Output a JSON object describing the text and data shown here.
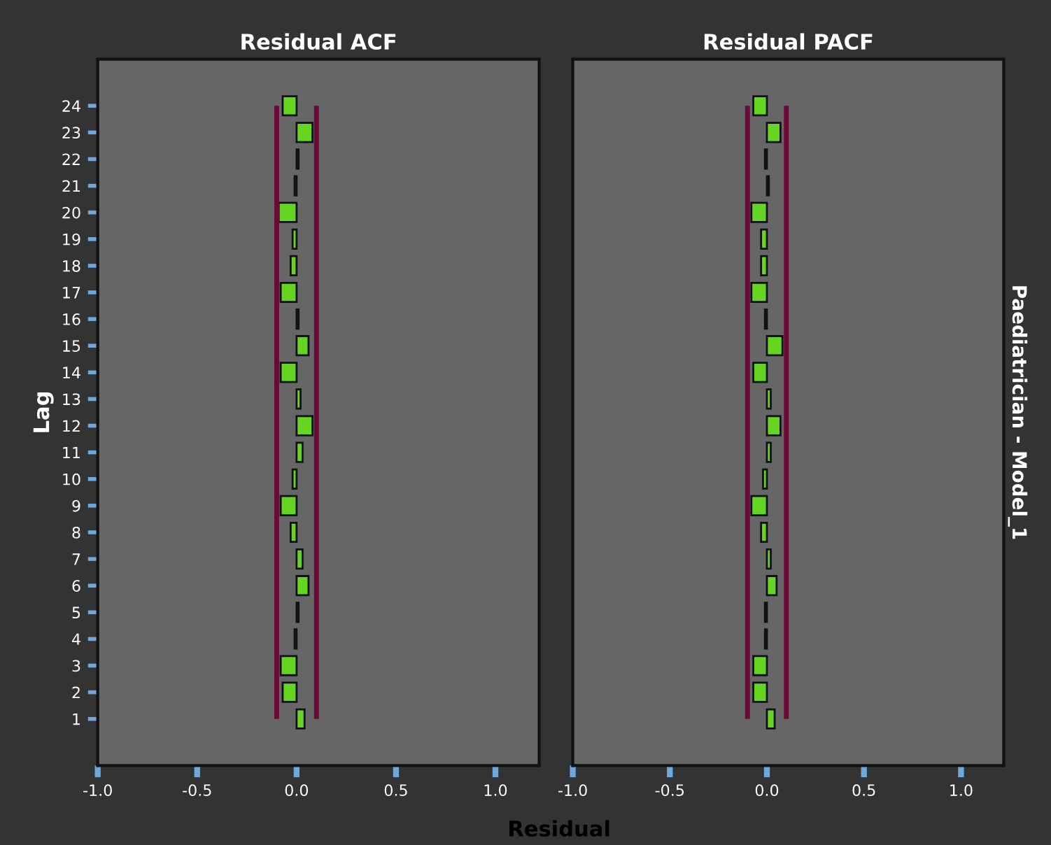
{
  "chart_data": [
    {
      "type": "bar",
      "orientation": "horizontal",
      "title": "Residual ACF",
      "xlabel": "Residual",
      "ylabel": "Lag",
      "categories": [
        "24",
        "23",
        "22",
        "21",
        "20",
        "19",
        "18",
        "17",
        "16",
        "15",
        "14",
        "13",
        "12",
        "11",
        "10",
        "9",
        "8",
        "7",
        "6",
        "5",
        "4",
        "3",
        "2",
        "1"
      ],
      "values": [
        -0.07,
        0.08,
        0.01,
        -0.01,
        -0.09,
        -0.02,
        -0.03,
        -0.08,
        0.01,
        0.06,
        -0.08,
        0.02,
        0.08,
        0.03,
        -0.02,
        -0.08,
        -0.03,
        0.03,
        0.06,
        0.01,
        -0.01,
        -0.08,
        -0.07,
        0.04
      ],
      "color": "#66d522",
      "xlim": [
        -1.0,
        1.22
      ],
      "xticks": [
        {
          "value": -1.0,
          "label": "-1.0"
        },
        {
          "value": -0.5,
          "label": "-0.5"
        },
        {
          "value": 0.0,
          "label": "0.0"
        },
        {
          "value": 0.5,
          "label": "0.5"
        },
        {
          "value": 1.0,
          "label": "1.0"
        }
      ],
      "ref_lines": [
        {
          "axis": "x",
          "value": -0.1,
          "label": null,
          "color": "#6b0a3a"
        },
        {
          "axis": "x",
          "value": 0.1,
          "label": null,
          "color": "#6b0a3a"
        }
      ],
      "grid": false,
      "legend": false
    },
    {
      "type": "bar",
      "orientation": "horizontal",
      "title": "Residual PACF",
      "annotations": [
        "Paediatrician - Model_1"
      ],
      "categories": [
        "24",
        "23",
        "22",
        "21",
        "20",
        "19",
        "18",
        "17",
        "16",
        "15",
        "14",
        "13",
        "12",
        "11",
        "10",
        "9",
        "8",
        "7",
        "6",
        "5",
        "4",
        "3",
        "2",
        "1"
      ],
      "values": [
        -0.07,
        0.07,
        -0.01,
        0.01,
        -0.08,
        -0.03,
        -0.03,
        -0.08,
        -0.01,
        0.08,
        -0.07,
        0.02,
        0.07,
        0.02,
        -0.02,
        -0.08,
        -0.03,
        0.02,
        0.05,
        -0.01,
        -0.01,
        -0.07,
        -0.07,
        0.04
      ],
      "color": "#66d522",
      "xlim": [
        -1.0,
        1.22
      ],
      "xticks": [
        {
          "value": -1.0,
          "label": "-1.0"
        },
        {
          "value": -0.5,
          "label": "-0.5"
        },
        {
          "value": 0.0,
          "label": "0.0"
        },
        {
          "value": 0.5,
          "label": "0.5"
        },
        {
          "value": 1.0,
          "label": "1.0"
        }
      ],
      "ref_lines": [
        {
          "axis": "x",
          "value": -0.1,
          "label": null,
          "color": "#6b0a3a"
        },
        {
          "axis": "x",
          "value": 0.1,
          "label": null,
          "color": "#6b0a3a"
        }
      ],
      "tick_labels": "x",
      "grid": false,
      "legend": false
    }
  ]
}
